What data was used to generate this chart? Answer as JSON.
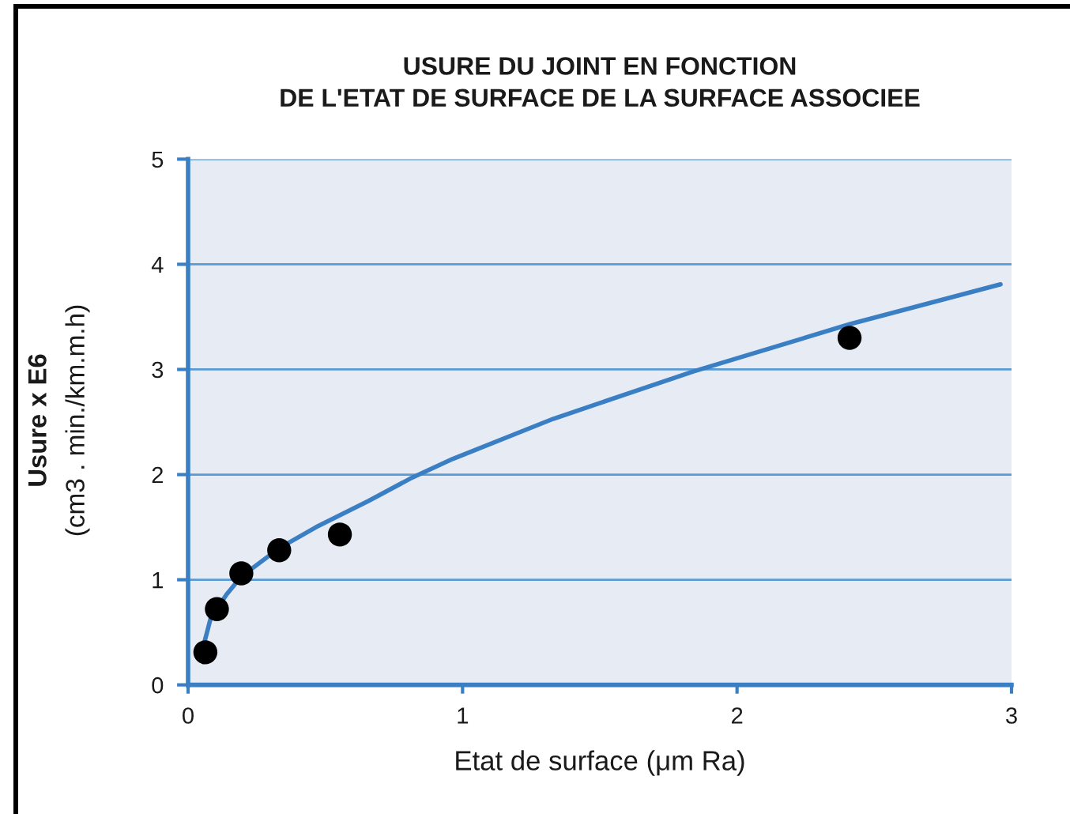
{
  "chart_data": {
    "type": "scatter",
    "title": "USURE DU JOINT EN FONCTION\nDE L'ETAT DE SURFACE DE LA SURFACE ASSOCIEE",
    "xlabel": "Etat de surface (μm Ra)",
    "ylabel": "Usure x E6\n(cm3 . min./km.m.h)",
    "xlim": [
      0,
      3
    ],
    "xticks": [
      0,
      1,
      2,
      3
    ],
    "ylim": [
      0,
      5
    ],
    "yticks": [
      0,
      1,
      2,
      3,
      4,
      5
    ],
    "grid": "y",
    "series": [
      {
        "color": "#000000",
        "marker": "circle",
        "x": [
          0.063,
          0.105,
          0.194,
          0.332,
          0.553,
          2.41
        ],
        "values": [
          0.31,
          0.72,
          1.06,
          1.28,
          1.43,
          3.3
        ]
      },
      {
        "type": "line",
        "color": "#3a7fc4",
        "marker": "none",
        "line_style": "solid",
        "x": [
          0.06,
          0.082,
          0.14,
          0.194,
          0.332,
          0.466,
          0.658,
          0.808,
          0.965,
          1.33,
          1.84,
          2.41,
          2.96
        ],
        "values": [
          0.41,
          0.63,
          0.86,
          1.03,
          1.3,
          1.5,
          1.75,
          1.96,
          2.15,
          2.53,
          2.98,
          3.43,
          3.81
        ]
      }
    ]
  }
}
